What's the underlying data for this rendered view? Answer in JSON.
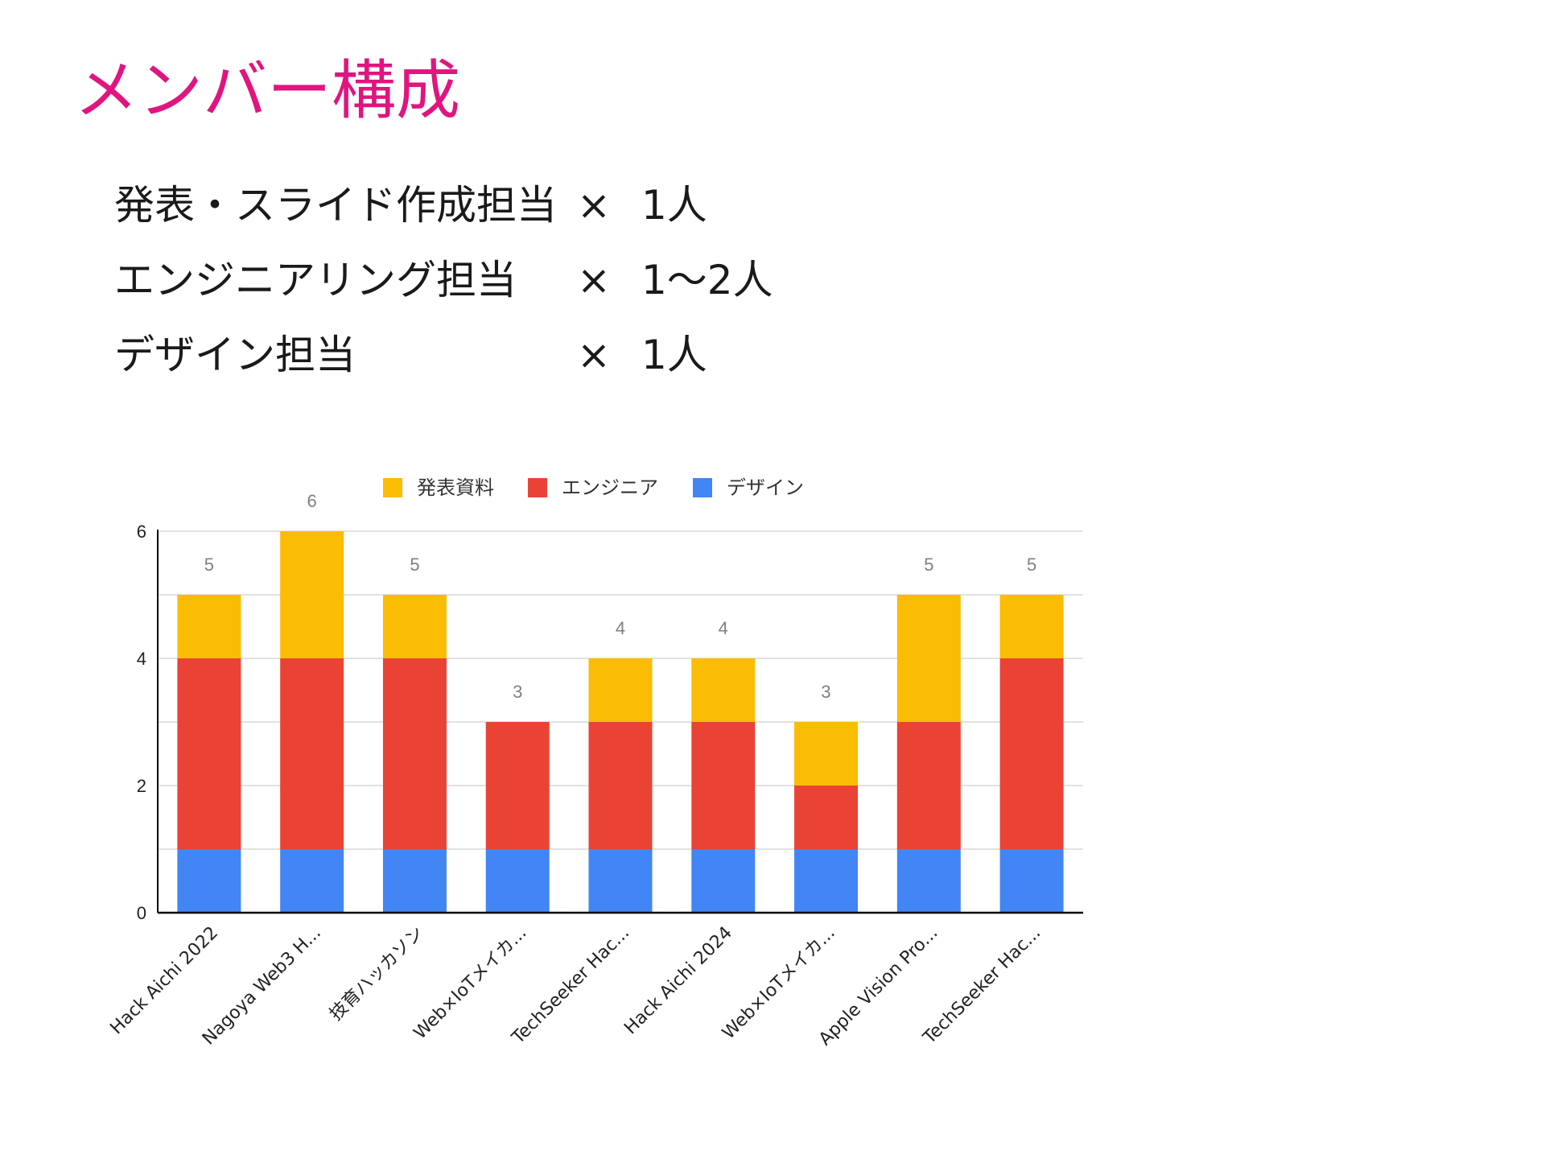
{
  "slide": {
    "title": "メンバー構成",
    "roles": [
      {
        "name": "発表・スライド作成担当",
        "times": "×",
        "count": "1人"
      },
      {
        "name": "エンジニアリング担当",
        "times": "×",
        "count": "1〜2人"
      },
      {
        "name": "デザイン担当",
        "times": "×",
        "count": "1人"
      }
    ]
  },
  "colors": {
    "title": "#E0157F",
    "text": "#1a1a1a",
    "series_presentation": "#FBBC04",
    "series_engineer": "#EA4335",
    "series_design": "#4285F4",
    "grid": "#d9d9d9",
    "axis": "#000000",
    "total_label": "#808080"
  },
  "chart_data": {
    "type": "bar",
    "stacked": true,
    "categories": [
      "Hack Aichi 2022",
      "Nagoya Web3 H...",
      "技育ハッカソン",
      "Web×IoTメイカ...",
      "TechSeeker Hac...",
      "Hack Aichi 2024",
      "Web×IoTメイカ...",
      "Apple Vision Pro...",
      "TechSeeker Hac..."
    ],
    "series": [
      {
        "name": "デザイン",
        "values": [
          1,
          1,
          1,
          1,
          1,
          1,
          1,
          1,
          1
        ]
      },
      {
        "name": "エンジニア",
        "values": [
          3,
          3,
          3,
          2,
          2,
          2,
          1,
          2,
          3
        ]
      },
      {
        "name": "発表資料",
        "values": [
          1,
          2,
          1,
          0,
          1,
          1,
          1,
          2,
          1
        ]
      }
    ],
    "legend_order": [
      "発表資料",
      "エンジニア",
      "デザイン"
    ],
    "totals": [
      5,
      6,
      5,
      3,
      4,
      4,
      3,
      5,
      5
    ],
    "ylim": [
      0,
      6
    ],
    "yticks": [
      0,
      2,
      4,
      6
    ],
    "minor_grid": [
      1,
      3,
      5
    ],
    "grid": true,
    "legend_position": "top",
    "title": "",
    "xlabel": "",
    "ylabel": ""
  }
}
